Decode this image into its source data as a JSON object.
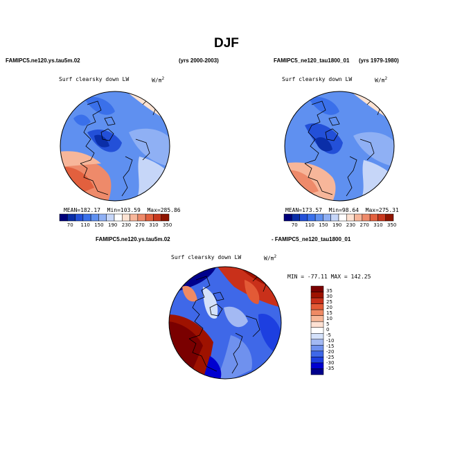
{
  "page": {
    "season": "DJF"
  },
  "colors": {
    "abs_scale": [
      "#00007a",
      "#0a2ea8",
      "#2350d8",
      "#3a70ea",
      "#5f90f0",
      "#8fb0f4",
      "#c6d6f8",
      "#ffffff",
      "#fde2d2",
      "#f7b69a",
      "#ee8a6a",
      "#e2603e",
      "#c8381e",
      "#8e1400"
    ],
    "diff_scale": [
      "#00008c",
      "#0000d0",
      "#1d3fe0",
      "#3f68e8",
      "#6f91ee",
      "#a3b9f3",
      "#d4e1fa",
      "#ffffff",
      "#ffe1d3",
      "#f8b798",
      "#ef8a64",
      "#e35a36",
      "#c9301a",
      "#9e1200",
      "#7a0000"
    ]
  },
  "chart_data": [
    {
      "type": "polar-map",
      "name": "FAMIPC5.ne120.ys.tau5m.02",
      "years": "(yrs 2000-2003)",
      "variable": "Surf clearsky down LW",
      "units": "W/m",
      "units_exp": "2",
      "stats": {
        "mean_label": "MEAN=",
        "mean": "182.17",
        "min_label": "Min=",
        "min": "103.59",
        "max_label": "Max=",
        "max": "285.86"
      },
      "colorbar_ticks": [
        "70",
        "110",
        "150",
        "190",
        "230",
        "270",
        "310",
        "350"
      ]
    },
    {
      "type": "polar-map",
      "name": "FAMIPC5_ne120_tau1800_01",
      "years": "(yrs 1979-1980)",
      "variable": "Surf clearsky down LW",
      "units": "W/m",
      "units_exp": "2",
      "stats": {
        "mean_label": "MEAN=",
        "mean": "173.57",
        "min_label": "Min=",
        "min": "98.64",
        "max_label": "Max=",
        "max": "275.31"
      },
      "colorbar_ticks": [
        "70",
        "110",
        "150",
        "190",
        "230",
        "270",
        "310",
        "350"
      ]
    },
    {
      "type": "polar-map-difference",
      "name_a": "FAMIPC5.ne120.ys.tau5m.02",
      "name_b": "- FAMIPC5_ne120_tau1800_01",
      "variable": "Surf clearsky down LW",
      "units": "W/m",
      "units_exp": "2",
      "stats_text": "MIN = -77.11  MAX = 142.25",
      "colorbar_ticks": [
        "35",
        "30",
        "25",
        "20",
        "15",
        "10",
        "5",
        "0",
        "-5",
        "-10",
        "-15",
        "-20",
        "-25",
        "-30",
        "-35"
      ]
    }
  ]
}
